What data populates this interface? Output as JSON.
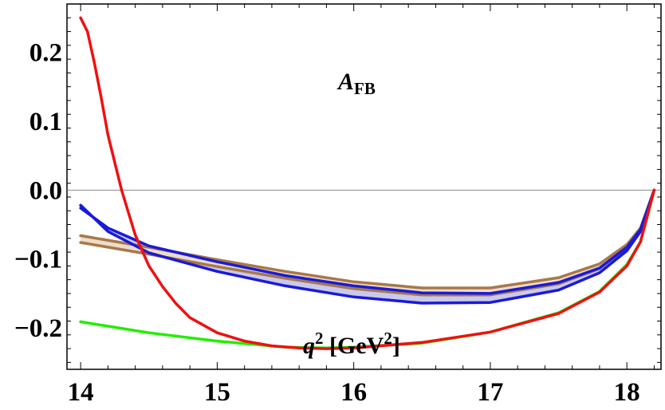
{
  "chart_data": {
    "type": "line",
    "title": "",
    "xlabel": "q^2 [GeV^2]",
    "ylabel": "",
    "xlim": [
      13.9,
      18.25
    ],
    "ylim": [
      -0.26,
      0.27
    ],
    "x_ticks": [
      "14",
      "15",
      "16",
      "17",
      "18"
    ],
    "y_ticks": [
      "0.2",
      "0.1",
      "0.0",
      "−0.1",
      "−0.2"
    ],
    "x_tick_values": [
      14,
      15,
      16,
      17,
      18
    ],
    "y_tick_values": [
      0.2,
      0.1,
      0.0,
      -0.1,
      -0.2
    ],
    "grid": false,
    "legend": "none",
    "annotations": {
      "observable_main": "A",
      "observable_sub": "FB",
      "xlabel_q": "q",
      "xlabel_sup": "2",
      "xlabel_unit_open": " [GeV",
      "xlabel_unit_sup": "2",
      "xlabel_unit_close": "]"
    },
    "colors": {
      "red": "#ee1111",
      "green": "#22ee00",
      "blue": "#1a1ad9",
      "blue_fill": "#c9c9ee",
      "brown": "#a8784a",
      "brown_fill": "#eedccb",
      "zero_line": "#888888"
    },
    "series": [
      {
        "key": "red",
        "x": [
          14.0,
          14.05,
          14.1,
          14.15,
          14.2,
          14.3,
          14.4,
          14.5,
          14.6,
          14.7,
          14.8,
          15.0,
          15.2,
          15.4,
          15.6,
          15.8,
          16.0,
          16.5,
          17.0,
          17.5,
          17.8,
          18.0,
          18.1,
          18.2
        ],
        "y": [
          0.25,
          0.23,
          0.185,
          0.135,
          0.08,
          0.0,
          -0.065,
          -0.11,
          -0.14,
          -0.165,
          -0.185,
          -0.207,
          -0.219,
          -0.226,
          -0.229,
          -0.23,
          -0.229,
          -0.221,
          -0.206,
          -0.179,
          -0.148,
          -0.11,
          -0.075,
          0.0
        ]
      },
      {
        "key": "green",
        "x": [
          14.0,
          14.5,
          15.0,
          15.5,
          15.8,
          16.0,
          16.5,
          17.0,
          17.5,
          17.8,
          18.0,
          18.1,
          18.2
        ],
        "y": [
          -0.191,
          -0.207,
          -0.219,
          -0.228,
          -0.229,
          -0.228,
          -0.222,
          -0.206,
          -0.178,
          -0.147,
          -0.108,
          -0.075,
          0.0
        ]
      },
      {
        "key": "blue_upper",
        "x": [
          14.0,
          14.2,
          14.5,
          15.0,
          15.5,
          16.0,
          16.5,
          17.0,
          17.5,
          17.8,
          18.0,
          18.1,
          18.2
        ],
        "y": [
          -0.026,
          -0.055,
          -0.081,
          -0.104,
          -0.124,
          -0.139,
          -0.149,
          -0.15,
          -0.134,
          -0.113,
          -0.083,
          -0.057,
          0.0
        ]
      },
      {
        "key": "blue_lower",
        "x": [
          14.0,
          14.2,
          14.5,
          15.0,
          15.5,
          16.0,
          16.5,
          17.0,
          17.5,
          17.8,
          18.0,
          18.1,
          18.2
        ],
        "y": [
          -0.022,
          -0.06,
          -0.091,
          -0.118,
          -0.139,
          -0.155,
          -0.164,
          -0.163,
          -0.145,
          -0.12,
          -0.088,
          -0.06,
          0.0
        ]
      },
      {
        "key": "brown_upper",
        "x": [
          14.0,
          14.5,
          15.0,
          15.5,
          16.0,
          16.5,
          17.0,
          17.5,
          17.8,
          18.0,
          18.1,
          18.2
        ],
        "y": [
          -0.066,
          -0.083,
          -0.101,
          -0.118,
          -0.133,
          -0.142,
          -0.142,
          -0.127,
          -0.107,
          -0.079,
          -0.055,
          0.0
        ]
      },
      {
        "key": "brown_lower",
        "x": [
          14.0,
          14.5,
          15.0,
          15.5,
          16.0,
          16.5,
          17.0,
          17.5,
          17.8,
          18.0,
          18.1,
          18.2
        ],
        "y": [
          -0.076,
          -0.093,
          -0.111,
          -0.128,
          -0.143,
          -0.152,
          -0.152,
          -0.136,
          -0.114,
          -0.084,
          -0.058,
          0.0
        ]
      }
    ],
    "bands": [
      {
        "key": "blue_band",
        "upper": "blue_upper",
        "lower": "blue_lower"
      },
      {
        "key": "brown_band",
        "upper": "brown_upper",
        "lower": "brown_lower"
      }
    ]
  }
}
